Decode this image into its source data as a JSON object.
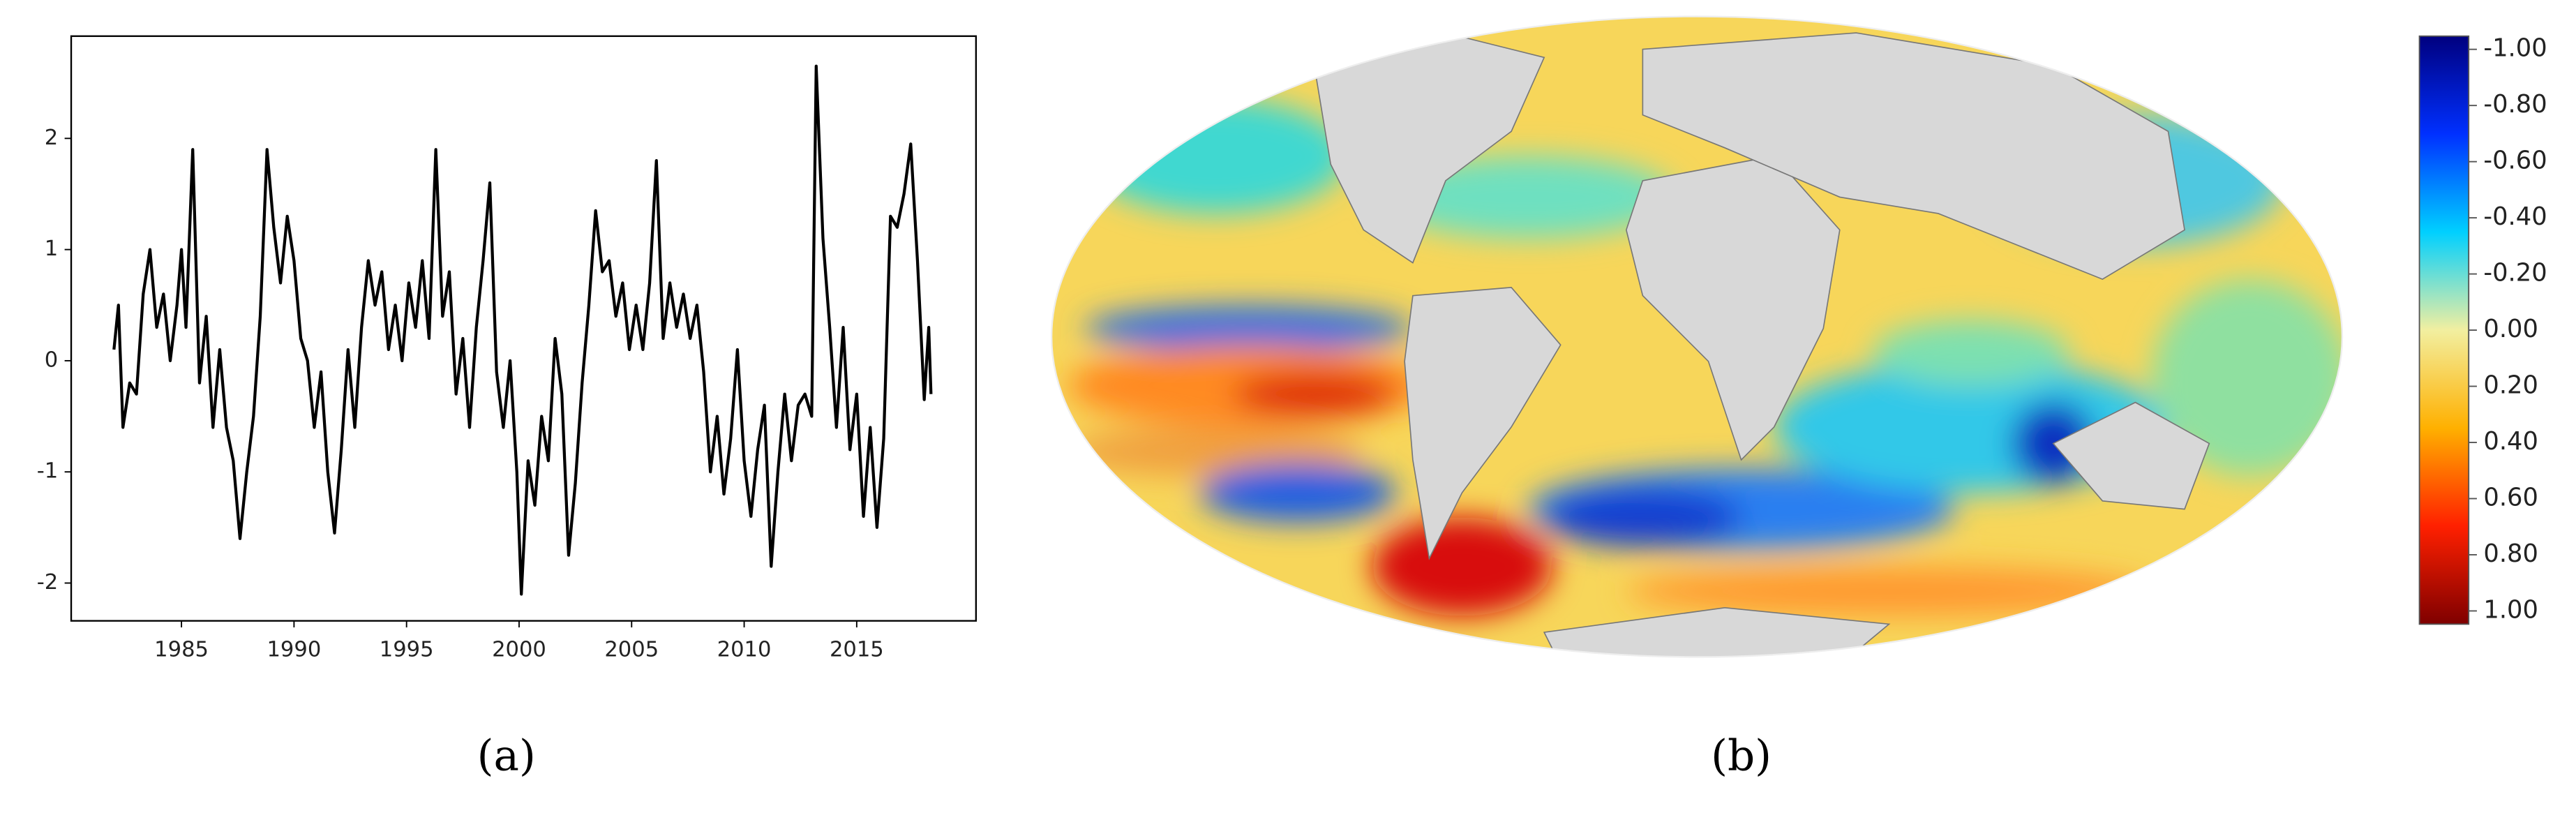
{
  "chart_data": [
    {
      "type": "line",
      "caption": "(a)",
      "color": "#000000",
      "xlim": [
        1980.1,
        2020.3
      ],
      "ylim": [
        -2.34,
        2.92
      ],
      "xticks": [
        1985,
        1990,
        1995,
        2000,
        2005,
        2010,
        2015
      ],
      "yticks": [
        -2,
        -1,
        0,
        1,
        2
      ],
      "x": [
        1982.0,
        1982.2,
        1982.4,
        1982.7,
        1983.0,
        1983.3,
        1983.6,
        1983.9,
        1984.2,
        1984.5,
        1984.8,
        1985.0,
        1985.2,
        1985.5,
        1985.8,
        1986.1,
        1986.4,
        1986.7,
        1987.0,
        1987.3,
        1987.6,
        1987.9,
        1988.2,
        1988.5,
        1988.8,
        1989.1,
        1989.4,
        1989.7,
        1990.0,
        1990.3,
        1990.6,
        1990.9,
        1991.2,
        1991.5,
        1991.8,
        1992.1,
        1992.4,
        1992.7,
        1993.0,
        1993.3,
        1993.6,
        1993.9,
        1994.2,
        1994.5,
        1994.8,
        1995.1,
        1995.4,
        1995.7,
        1996.0,
        1996.3,
        1996.6,
        1996.9,
        1997.2,
        1997.5,
        1997.8,
        1998.1,
        1998.4,
        1998.7,
        1999.0,
        1999.3,
        1999.6,
        1999.9,
        2000.1,
        2000.4,
        2000.7,
        2001.0,
        2001.3,
        2001.6,
        2001.9,
        2002.2,
        2002.5,
        2002.8,
        2003.1,
        2003.4,
        2003.7,
        2004.0,
        2004.3,
        2004.6,
        2004.9,
        2005.2,
        2005.5,
        2005.8,
        2006.1,
        2006.4,
        2006.7,
        2007.0,
        2007.3,
        2007.6,
        2007.9,
        2008.2,
        2008.5,
        2008.8,
        2009.1,
        2009.4,
        2009.7,
        2010.0,
        2010.3,
        2010.6,
        2010.9,
        2011.2,
        2011.5,
        2011.8,
        2012.1,
        2012.4,
        2012.7,
        2013.0,
        2013.2,
        2013.5,
        2013.8,
        2014.1,
        2014.4,
        2014.7,
        2015.0,
        2015.3,
        2015.6,
        2015.9,
        2016.2,
        2016.5,
        2016.8,
        2017.1,
        2017.4,
        2017.7,
        2018.0,
        2018.2,
        2018.3
      ],
      "values": [
        0.1,
        0.5,
        -0.6,
        -0.2,
        -0.3,
        0.6,
        1.0,
        0.3,
        0.6,
        0.0,
        0.5,
        1.0,
        0.3,
        1.9,
        -0.2,
        0.4,
        -0.6,
        0.1,
        -0.6,
        -0.9,
        -1.6,
        -1.0,
        -0.5,
        0.4,
        1.9,
        1.2,
        0.7,
        1.3,
        0.9,
        0.2,
        0.0,
        -0.6,
        -0.1,
        -1.0,
        -1.55,
        -0.8,
        0.1,
        -0.6,
        0.3,
        0.9,
        0.5,
        0.8,
        0.1,
        0.5,
        0.0,
        0.7,
        0.3,
        0.9,
        0.2,
        1.9,
        0.4,
        0.8,
        -0.3,
        0.2,
        -0.6,
        0.3,
        0.9,
        1.6,
        -0.1,
        -0.6,
        0.0,
        -1.0,
        -2.1,
        -0.9,
        -1.3,
        -0.5,
        -0.9,
        0.2,
        -0.3,
        -1.75,
        -1.1,
        -0.2,
        0.5,
        1.35,
        0.8,
        0.9,
        0.4,
        0.7,
        0.1,
        0.5,
        0.1,
        0.7,
        1.8,
        0.2,
        0.7,
        0.3,
        0.6,
        0.2,
        0.5,
        -0.1,
        -1.0,
        -0.5,
        -1.2,
        -0.7,
        0.1,
        -0.9,
        -1.4,
        -0.8,
        -0.4,
        -1.85,
        -1.0,
        -0.3,
        -0.9,
        -0.4,
        -0.3,
        -0.5,
        2.65,
        1.1,
        0.3,
        -0.6,
        0.3,
        -0.8,
        -0.3,
        -1.4,
        -0.6,
        -1.5,
        -0.7,
        1.3,
        1.2,
        1.5,
        1.95,
        0.9,
        -0.35,
        0.3,
        -0.3
      ]
    },
    {
      "type": "map",
      "caption": "(b)",
      "colorbar": {
        "ylim": [
          -1.047,
          1.047
        ],
        "colors": [
          "#00007f",
          "#0030ff",
          "#00d0ff",
          "#f2efa0",
          "#ffb000",
          "#ff2000",
          "#7f0000"
        ],
        "yticks": [
          {
            "value": -1,
            "label": "-1.00"
          },
          {
            "value": -0.8,
            "label": "-0.80"
          },
          {
            "value": -0.6,
            "label": "-0.60"
          },
          {
            "value": -0.4,
            "label": "-0.40"
          },
          {
            "value": -0.2,
            "label": "-0.20"
          },
          {
            "value": 0,
            "label": "0.00"
          },
          {
            "value": 0.2,
            "label": "0.20"
          },
          {
            "value": 0.4,
            "label": "0.40"
          },
          {
            "value": 0.6,
            "label": "0.60"
          },
          {
            "value": 0.8,
            "label": "0.80"
          },
          {
            "value": 1,
            "label": "1.00"
          }
        ]
      }
    }
  ]
}
